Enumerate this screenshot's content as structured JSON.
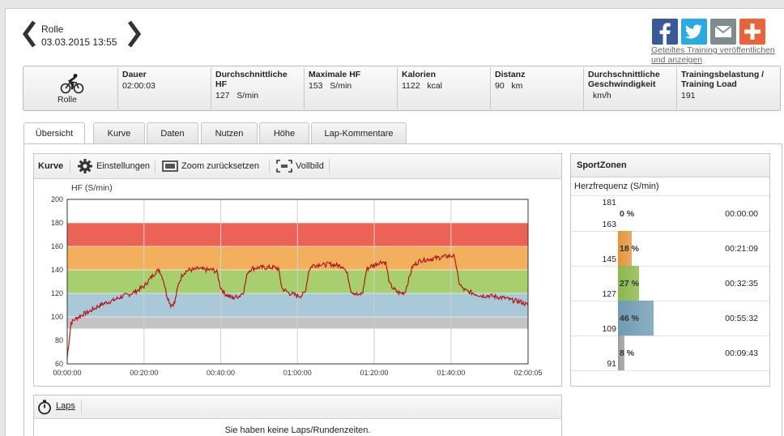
{
  "header": {
    "sport": "Rolle",
    "datetime": "03.03.2015 13:55",
    "share_link": "Geteiltes Training veröffentlichen und anzeigen",
    "social": [
      {
        "name": "facebook",
        "color": "#3b5998"
      },
      {
        "name": "twitter",
        "color": "#2ba9e1"
      },
      {
        "name": "email",
        "color": "#7e8c8d"
      },
      {
        "name": "more",
        "color": "#e9643a"
      }
    ]
  },
  "stats": {
    "sport_label": "Rolle",
    "items": [
      {
        "label": "Dauer",
        "value": "02:00:03"
      },
      {
        "label": "Durchschnittliche HF",
        "value": "127   S/min"
      },
      {
        "label": "Maximale HF",
        "value": "153   S/min"
      },
      {
        "label": "Kalorien",
        "value": "1122   kcal"
      },
      {
        "label": "Distanz",
        "value": "90   km"
      },
      {
        "label": "Durchschnittliche Geschwindigkeit",
        "value": "km/h"
      },
      {
        "label": "Trainingsbelastung / Training Load",
        "value": "191"
      }
    ]
  },
  "tabs": [
    "Übersicht",
    "Kurve",
    "Daten",
    "Nutzen",
    "Höhe",
    "Lap-Kommentare"
  ],
  "active_tab": 0,
  "chart_toolbar": {
    "title": "Kurve",
    "settings": "Einstellungen",
    "zoom_reset": "Zoom zurücksetzen",
    "fullscreen": "Vollbild"
  },
  "chart_data": {
    "type": "line",
    "ylabel": "HF (S/min)",
    "ylim": [
      60,
      200
    ],
    "yticks": [
      "200",
      "180",
      "160",
      "140",
      "120",
      "100",
      "80",
      "60"
    ],
    "xlim_seconds": [
      0,
      7205
    ],
    "xticks": [
      "00:00:00",
      "00:20:00",
      "00:40:00",
      "01:00:00",
      "01:20:00",
      "01:40:00",
      "02:00:05"
    ],
    "zones": [
      {
        "from": 90,
        "to": 100,
        "color": "#c3c3c3"
      },
      {
        "from": 100,
        "to": 120,
        "color": "#a9c8d8"
      },
      {
        "from": 120,
        "to": 140,
        "color": "#a8cf6e"
      },
      {
        "from": 140,
        "to": 160,
        "color": "#f2b05c"
      },
      {
        "from": 160,
        "to": 180,
        "color": "#eb6256"
      }
    ],
    "line_color": "#b3161b",
    "series": [
      {
        "x_minutes": [
          0,
          1,
          2,
          4,
          6,
          8,
          10,
          12,
          14,
          16,
          18,
          20,
          21,
          22,
          23,
          24,
          25,
          26,
          27,
          28,
          29,
          30,
          31,
          32,
          33,
          34,
          36,
          38,
          39,
          40,
          41,
          42,
          43,
          44,
          45,
          46,
          47,
          48,
          50,
          52,
          54,
          55,
          56,
          57,
          58,
          59,
          60,
          61,
          62,
          63,
          64,
          65,
          66,
          67,
          68,
          70,
          72,
          73,
          74,
          75,
          76,
          77,
          78,
          79,
          80,
          81,
          82,
          83,
          84,
          85,
          86,
          87,
          88,
          90,
          92,
          94,
          96,
          98,
          100,
          101,
          102,
          103,
          104,
          106,
          108,
          110,
          112,
          114,
          116,
          118,
          120
        ],
        "values": [
          65,
          95,
          98,
          102,
          105,
          109,
          112,
          114,
          117,
          119,
          122,
          126,
          130,
          134,
          138,
          140,
          132,
          118,
          110,
          112,
          128,
          136,
          139,
          140,
          140,
          141,
          140,
          140,
          138,
          125,
          120,
          118,
          116,
          117,
          118,
          122,
          138,
          141,
          142,
          142,
          142,
          141,
          124,
          122,
          120,
          119,
          118,
          118,
          121,
          140,
          144,
          144,
          145,
          144,
          145,
          144,
          143,
          136,
          122,
          120,
          118,
          121,
          140,
          143,
          144,
          146,
          147,
          146,
          128,
          124,
          121,
          120,
          121,
          143,
          148,
          149,
          150,
          151,
          152,
          151,
          130,
          124,
          122,
          120,
          118,
          118,
          117,
          116,
          114,
          113,
          110
        ]
      }
    ]
  },
  "zones_panel": {
    "title": "SportZonen",
    "subtitle": "Herzfrequenz (S/min)",
    "rows": [
      {
        "top": "181",
        "bottom": "163",
        "percent_label": "0 %",
        "percent": 0,
        "time": "00:00:00",
        "color": "#d2442f"
      },
      {
        "top": "",
        "bottom": "145",
        "percent_label": "18 %",
        "percent": 18,
        "time": "00:21:09",
        "color": "#e4943a"
      },
      {
        "top": "",
        "bottom": "127",
        "percent_label": "27 %",
        "percent": 27,
        "time": "00:32:35",
        "color": "#8ab74a"
      },
      {
        "top": "",
        "bottom": "109",
        "percent_label": "46 %",
        "percent": 46,
        "time": "00:55:32",
        "color": "#6f9bb2"
      },
      {
        "top": "",
        "bottom": "91",
        "percent_label": "8 %",
        "percent": 8,
        "time": "00:09:43",
        "color": "#9c9c9c"
      }
    ]
  },
  "laps": {
    "title": "Laps",
    "empty_message": "Sie haben keine Laps/Rundenzeiten."
  }
}
